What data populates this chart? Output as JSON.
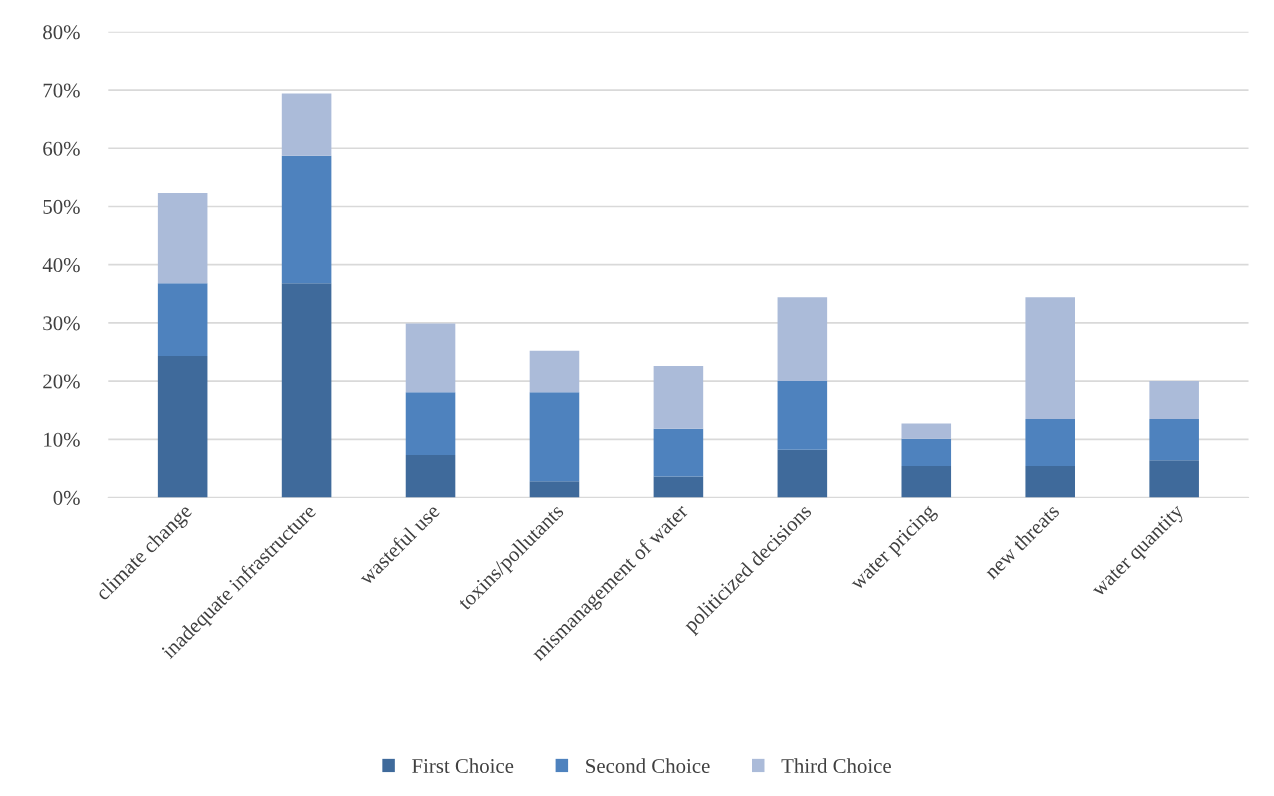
{
  "chart_data": {
    "type": "bar",
    "stacked": true,
    "categories": [
      "climate change",
      "inadequate infrastructure",
      "wasteful use",
      "toxins/pollutants",
      "mismanagement of water",
      "politicized decisions",
      "water pricing",
      "new threats",
      "water quantity"
    ],
    "series": [
      {
        "name": "First Choice",
        "color": "#3f6a9b",
        "values": [
          24.3,
          36.8,
          7.3,
          2.8,
          3.6,
          8.2,
          5.4,
          5.4,
          6.4
        ]
      },
      {
        "name": "Second Choice",
        "color": "#4e82be",
        "values": [
          12.5,
          21.9,
          10.8,
          15.3,
          8.2,
          11.8,
          4.7,
          8.1,
          7.1
        ]
      },
      {
        "name": "Third Choice",
        "color": "#abbbd9",
        "values": [
          15.5,
          10.7,
          11.8,
          7.1,
          10.8,
          14.4,
          2.6,
          20.9,
          6.5
        ]
      }
    ],
    "ylim": [
      0,
      80
    ],
    "yticks": [
      {
        "value": 0,
        "label": "0%"
      },
      {
        "value": 10,
        "label": "10%"
      },
      {
        "value": 20,
        "label": "20%"
      },
      {
        "value": 30,
        "label": "30%"
      },
      {
        "value": 40,
        "label": "40%"
      },
      {
        "value": 50,
        "label": "50%"
      },
      {
        "value": 60,
        "label": "60%"
      },
      {
        "value": 70,
        "label": "70%"
      },
      {
        "value": 80,
        "label": "80%"
      }
    ],
    "grid": "y",
    "legend": "bottom"
  }
}
